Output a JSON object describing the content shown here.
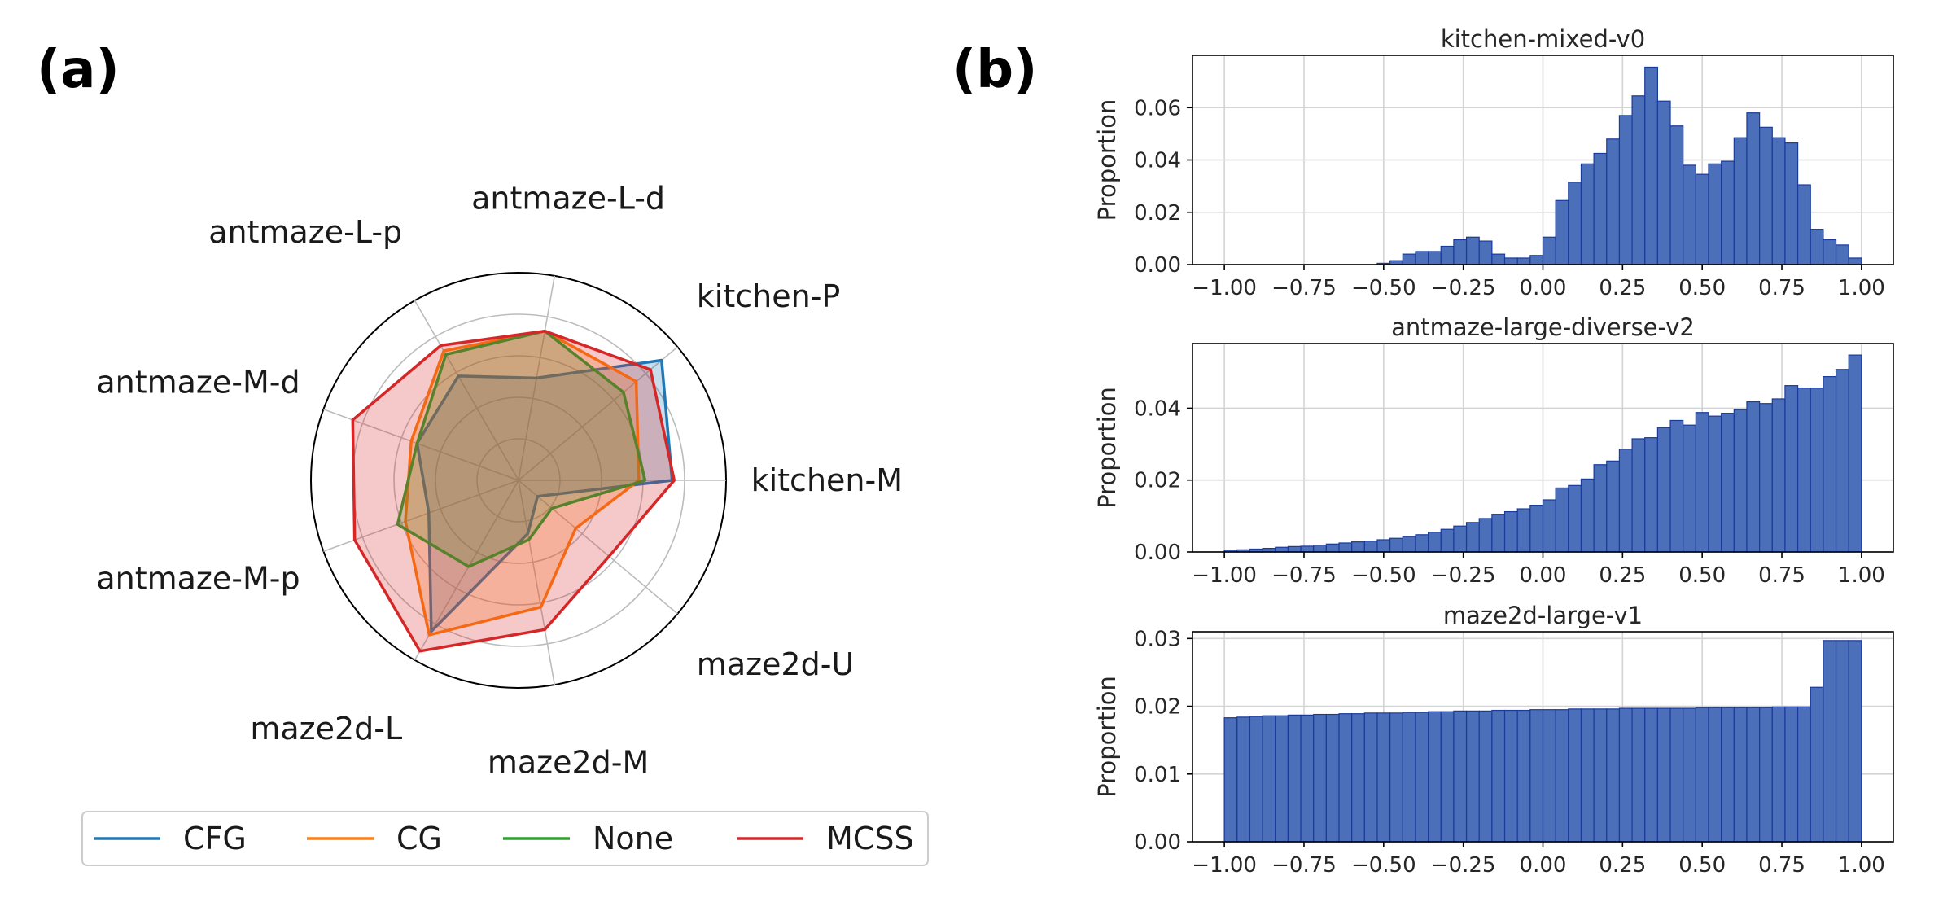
{
  "panels": {
    "a": "(a)",
    "b": "(b)"
  },
  "colors": {
    "CFG": "#1f77b4",
    "CG": "#ff7f0e",
    "None": "#2ca02c",
    "MCSS": "#d62728",
    "bar_fill": "#4c6fba",
    "bar_edge": "#1a3a9c",
    "grid": "#bcbcbc"
  },
  "chart_data": [
    {
      "type": "radar",
      "panel": "(a)",
      "axes": [
        "kitchen-M",
        "kitchen-P",
        "antmaze-L-d",
        "antmaze-L-p",
        "antmaze-M-d",
        "antmaze-M-p",
        "maze2d-L",
        "maze2d-M",
        "maze2d-U"
      ],
      "rmax": 1.0,
      "rings": [
        0.2,
        0.4,
        0.6,
        0.8,
        1.0
      ],
      "legend_position": "bottom",
      "series": [
        {
          "name": "CFG",
          "values": [
            0.74,
            0.9,
            0.5,
            0.58,
            0.52,
            0.46,
            0.84,
            0.26,
            0.12
          ]
        },
        {
          "name": "CG",
          "values": [
            0.58,
            0.74,
            0.73,
            0.72,
            0.55,
            0.58,
            0.86,
            0.62,
            0.36
          ]
        },
        {
          "name": "None",
          "values": [
            0.61,
            0.66,
            0.73,
            0.7,
            0.52,
            0.62,
            0.48,
            0.29,
            0.21
          ]
        },
        {
          "name": "MCSS",
          "values": [
            0.75,
            0.83,
            0.73,
            0.75,
            0.85,
            0.84,
            0.95,
            0.73,
            0.57
          ]
        }
      ]
    },
    {
      "type": "bar",
      "panel": "(b)",
      "title": "kitchen-mixed-v0",
      "ylabel": "Proportion",
      "xlim": [
        -1.1,
        1.1
      ],
      "ylim": [
        0,
        0.08
      ],
      "xticks": [
        -1.0,
        -0.75,
        -0.5,
        -0.25,
        0.0,
        0.25,
        0.5,
        0.75,
        1.0
      ],
      "xtick_labels": [
        "−1.00",
        "−0.75",
        "−0.50",
        "−0.25",
        "0.00",
        "0.25",
        "0.50",
        "0.75",
        "1.00"
      ],
      "yticks": [
        0.0,
        0.02,
        0.04,
        0.06
      ],
      "ytick_labels": [
        "0.00",
        "0.02",
        "0.04",
        "0.06"
      ],
      "bin_start": -1.0,
      "bin_width": 0.04,
      "values": [
        0,
        0,
        0,
        0,
        0,
        0,
        0,
        0,
        0,
        0,
        0,
        0,
        0.0005,
        0.0015,
        0.004,
        0.005,
        0.005,
        0.007,
        0.0095,
        0.0105,
        0.009,
        0.004,
        0.0025,
        0.0025,
        0.0035,
        0.0105,
        0.0245,
        0.0315,
        0.0385,
        0.0425,
        0.048,
        0.057,
        0.0645,
        0.0755,
        0.0625,
        0.053,
        0.038,
        0.0345,
        0.0385,
        0.0395,
        0.0485,
        0.058,
        0.0525,
        0.0485,
        0.0465,
        0.0305,
        0.0135,
        0.0095,
        0.0075,
        0.0025
      ]
    },
    {
      "type": "bar",
      "panel": "(b)",
      "title": "antmaze-large-diverse-v2",
      "ylabel": "Proportion",
      "xlim": [
        -1.1,
        1.1
      ],
      "ylim": [
        0,
        0.058
      ],
      "xticks": [
        -1.0,
        -0.75,
        -0.5,
        -0.25,
        0.0,
        0.25,
        0.5,
        0.75,
        1.0
      ],
      "xtick_labels": [
        "−1.00",
        "−0.75",
        "−0.50",
        "−0.25",
        "0.00",
        "0.25",
        "0.50",
        "0.75",
        "1.00"
      ],
      "yticks": [
        0.0,
        0.02,
        0.04
      ],
      "ytick_labels": [
        "0.00",
        "0.02",
        "0.04"
      ],
      "bin_start": -1.0,
      "bin_width": 0.04,
      "values": [
        0.0005,
        0.0006,
        0.0008,
        0.001,
        0.0013,
        0.0015,
        0.0016,
        0.0019,
        0.0022,
        0.0025,
        0.0028,
        0.003,
        0.0034,
        0.0038,
        0.0043,
        0.0048,
        0.0055,
        0.0063,
        0.0072,
        0.0082,
        0.0093,
        0.0105,
        0.0112,
        0.012,
        0.013,
        0.0145,
        0.0178,
        0.0185,
        0.0203,
        0.0243,
        0.0253,
        0.0286,
        0.0315,
        0.0318,
        0.0346,
        0.0366,
        0.0353,
        0.0388,
        0.0378,
        0.0386,
        0.0396,
        0.0418,
        0.0413,
        0.0426,
        0.0463,
        0.0456,
        0.0456,
        0.0488,
        0.0508,
        0.0548
      ]
    },
    {
      "type": "bar",
      "panel": "(b)",
      "title": "maze2d-large-v1",
      "ylabel": "Proportion",
      "xlim": [
        -1.1,
        1.1
      ],
      "ylim": [
        0,
        0.031
      ],
      "xticks": [
        -1.0,
        -0.75,
        -0.5,
        -0.25,
        0.0,
        0.25,
        0.5,
        0.75,
        1.0
      ],
      "xtick_labels": [
        "−1.00",
        "−0.75",
        "−0.50",
        "−0.25",
        "0.00",
        "0.25",
        "0.50",
        "0.75",
        "1.00"
      ],
      "yticks": [
        0.0,
        0.01,
        0.02,
        0.03
      ],
      "ytick_labels": [
        "0.00",
        "0.01",
        "0.02",
        "0.03"
      ],
      "bin_start": -1.0,
      "bin_width": 0.04,
      "values": [
        0.0183,
        0.0184,
        0.0185,
        0.0186,
        0.0186,
        0.0187,
        0.0187,
        0.0188,
        0.0188,
        0.0189,
        0.0189,
        0.019,
        0.019,
        0.019,
        0.0191,
        0.0191,
        0.0192,
        0.0192,
        0.0193,
        0.0193,
        0.0193,
        0.0194,
        0.0194,
        0.0194,
        0.0195,
        0.0195,
        0.0195,
        0.0196,
        0.0196,
        0.0196,
        0.0196,
        0.0197,
        0.0197,
        0.0197,
        0.0197,
        0.0197,
        0.0197,
        0.0198,
        0.0198,
        0.0198,
        0.0198,
        0.0198,
        0.0198,
        0.0199,
        0.0199,
        0.0199,
        0.0228,
        0.0297,
        0.0297,
        0.0297
      ]
    }
  ]
}
